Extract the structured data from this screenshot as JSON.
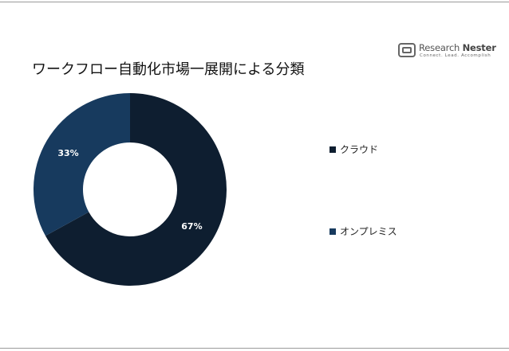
{
  "brand": {
    "name_part1": "Research",
    "name_part2": "Nester",
    "tagline": "Connect. Lead. Accomplish"
  },
  "chart_data": {
    "type": "pie",
    "title": "ワークフロー自動化市場一展開による分類",
    "donut": true,
    "categories": [
      "クラウド",
      "オンプレミス"
    ],
    "values": [
      67,
      33
    ],
    "labels": [
      "67%",
      "33%"
    ],
    "colors": [
      "#0e1e30",
      "#173a5e"
    ],
    "legend_position": "right"
  }
}
